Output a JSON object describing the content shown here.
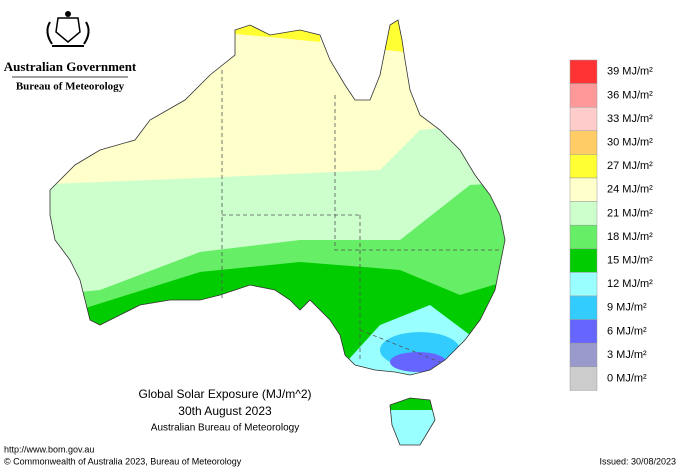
{
  "header": {
    "agency": "Australian Government",
    "bureau": "Bureau of Meteorology"
  },
  "map": {
    "title": "Global Solar Exposure (MJ/m^2)",
    "date": "30th August 2023",
    "source": "Australian Bureau of Meteorology"
  },
  "legend": {
    "steps": [
      {
        "value": 39,
        "label": "39 MJ/m²",
        "color": "#ff3333"
      },
      {
        "value": 36,
        "label": "36 MJ/m²",
        "color": "#ff9999"
      },
      {
        "value": 33,
        "label": "33 MJ/m²",
        "color": "#ffcccc"
      },
      {
        "value": 30,
        "label": "30 MJ/m²",
        "color": "#ffcc66"
      },
      {
        "value": 27,
        "label": "27 MJ/m²",
        "color": "#ffff33"
      },
      {
        "value": 24,
        "label": "24 MJ/m²",
        "color": "#ffffcc"
      },
      {
        "value": 21,
        "label": "21 MJ/m²",
        "color": "#ccffcc"
      },
      {
        "value": 18,
        "label": "18 MJ/m²",
        "color": "#66ee66"
      },
      {
        "value": 15,
        "label": "15 MJ/m²",
        "color": "#00cc00"
      },
      {
        "value": 12,
        "label": "12 MJ/m²",
        "color": "#99ffff"
      },
      {
        "value": 9,
        "label": "9 MJ/m²",
        "color": "#33ccff"
      },
      {
        "value": 6,
        "label": "6 MJ/m²",
        "color": "#6666ff"
      },
      {
        "value": 3,
        "label": "3 MJ/m²",
        "color": "#9999cc"
      },
      {
        "value": 0,
        "label": "0 MJ/m²",
        "color": "#cccccc"
      }
    ]
  },
  "footer": {
    "url": "http://www.bom.gov.au",
    "copyright": "© Commonwealth of Australia 2023, Bureau of Meteorology",
    "issued": "Issued: 30/08/2023"
  }
}
